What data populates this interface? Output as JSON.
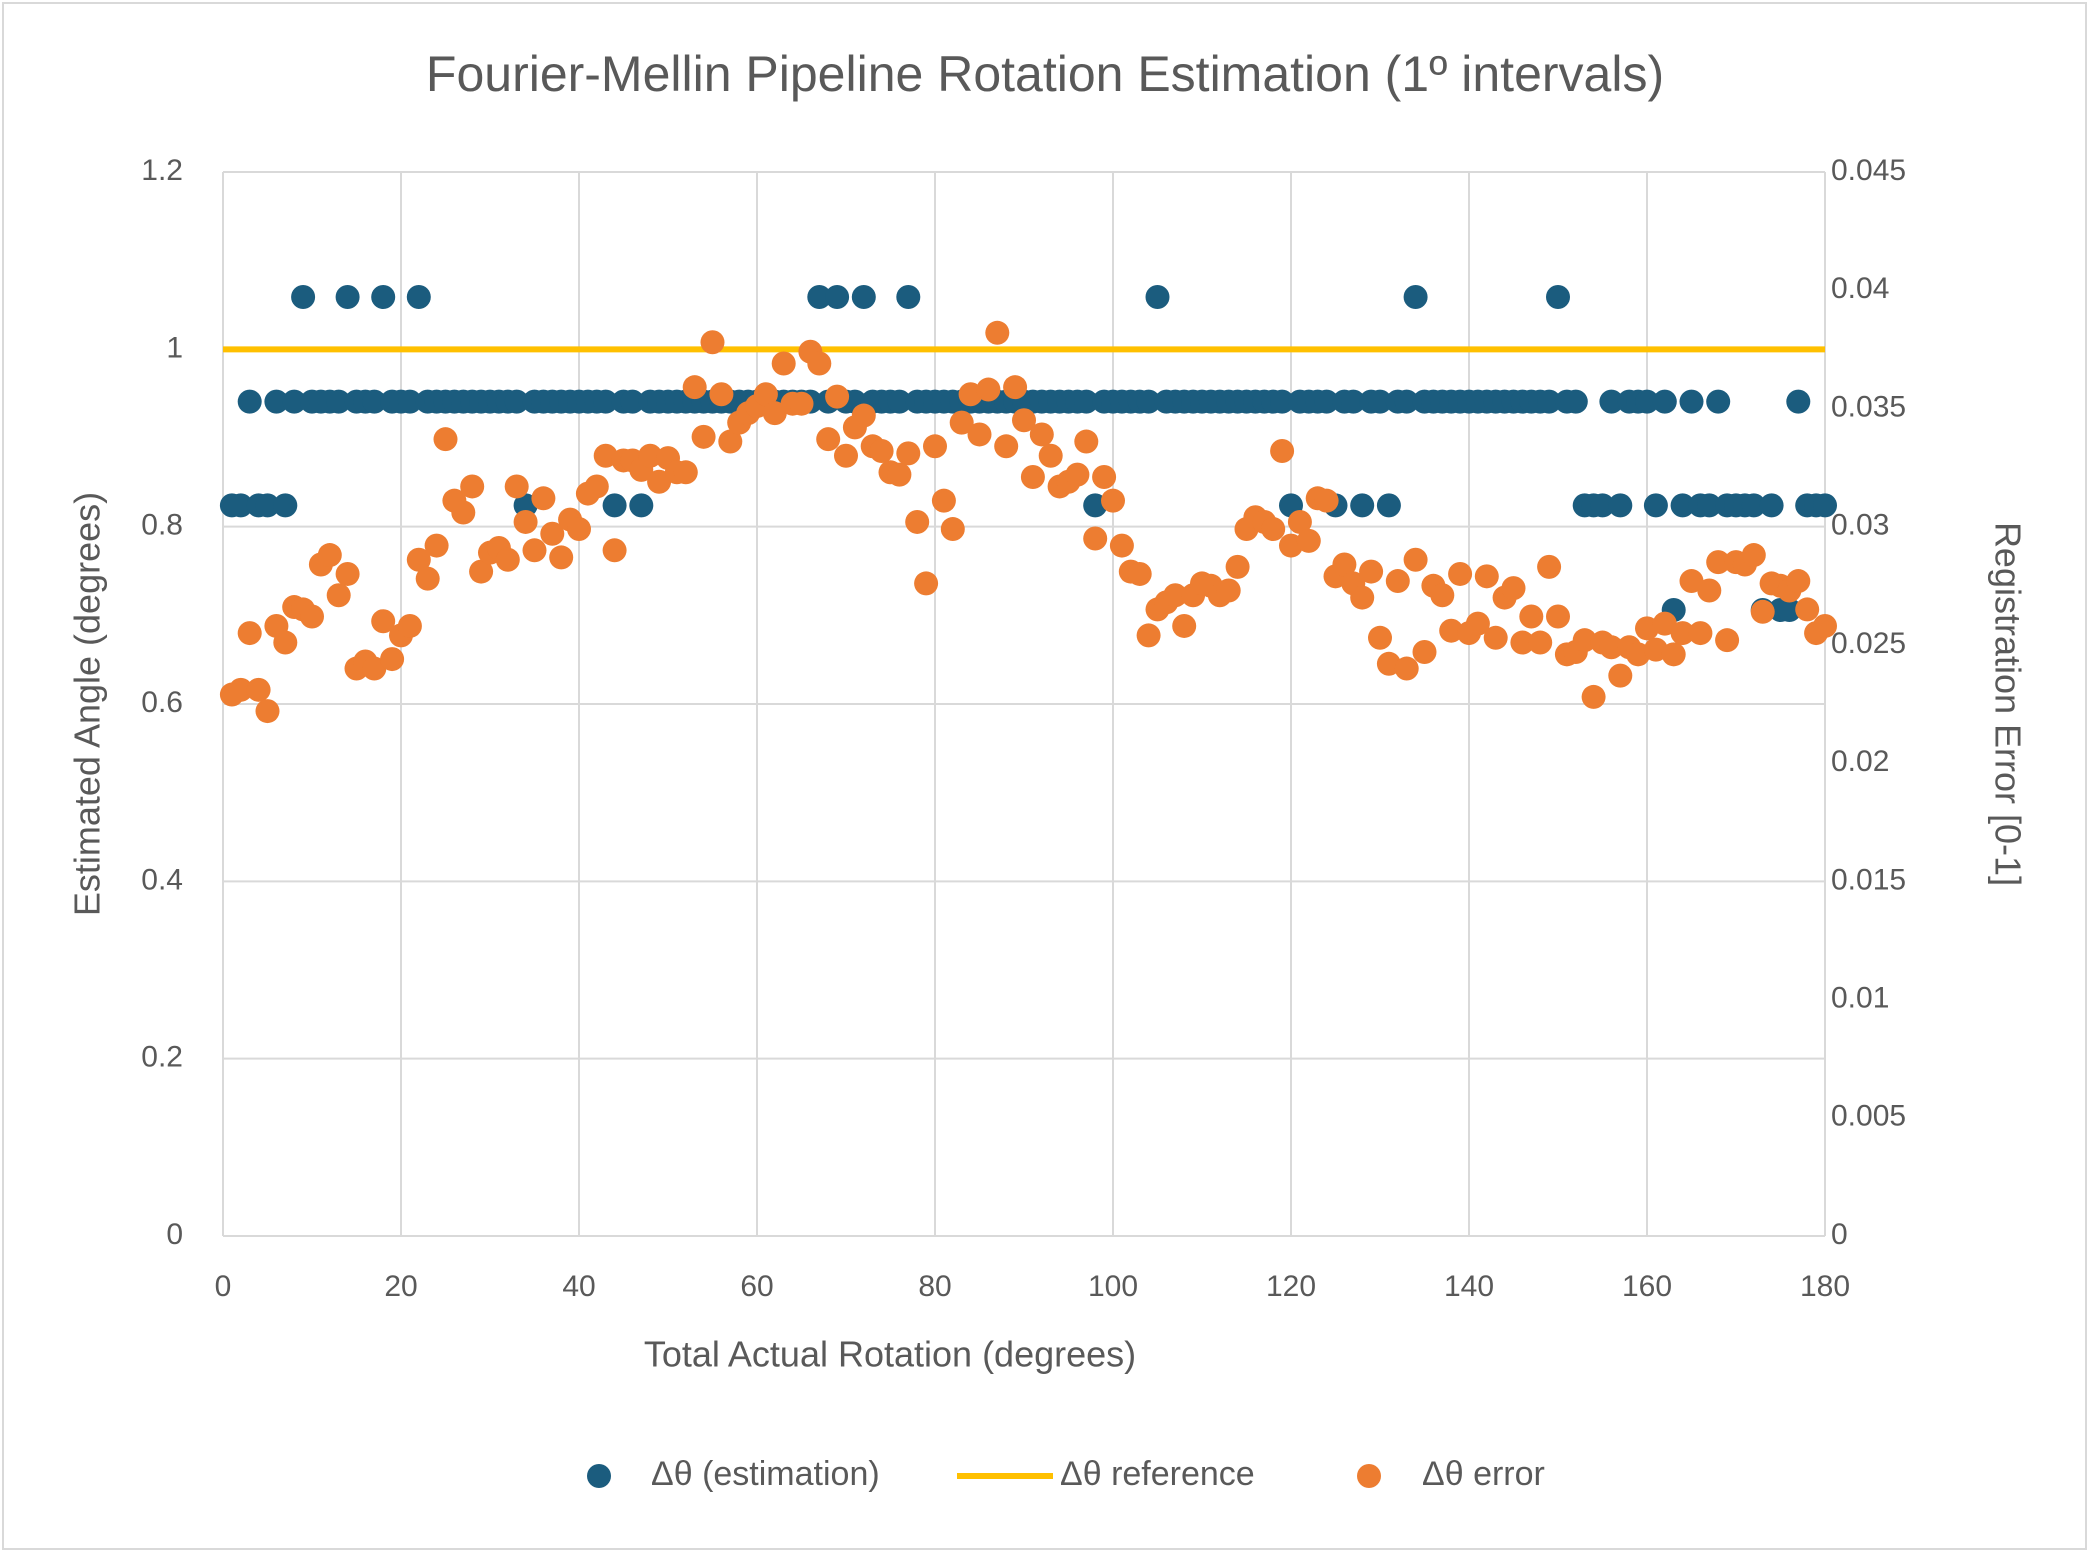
{
  "chart_data": {
    "type": "scatter",
    "title": "Fourier-Mellin Pipeline Rotation Estimation (1º intervals)",
    "x_label": "Total Actual Rotation (degrees)",
    "y_label": "Estimated Angle (degrees)",
    "y2_label": "Registration Error [0-1]",
    "x": [
      1,
      2,
      3,
      4,
      5,
      6,
      7,
      8,
      9,
      10,
      11,
      12,
      13,
      14,
      15,
      16,
      17,
      18,
      19,
      20,
      21,
      22,
      23,
      24,
      25,
      26,
      27,
      28,
      29,
      30,
      31,
      32,
      33,
      34,
      35,
      36,
      37,
      38,
      39,
      40,
      41,
      42,
      43,
      44,
      45,
      46,
      47,
      48,
      49,
      50,
      51,
      52,
      53,
      54,
      55,
      56,
      57,
      58,
      59,
      60,
      61,
      62,
      63,
      64,
      65,
      66,
      67,
      68,
      69,
      70,
      71,
      72,
      73,
      74,
      75,
      76,
      77,
      78,
      79,
      80,
      81,
      82,
      83,
      84,
      85,
      86,
      87,
      88,
      89,
      90,
      91,
      92,
      93,
      94,
      95,
      96,
      97,
      98,
      99,
      100,
      101,
      102,
      103,
      104,
      105,
      106,
      107,
      108,
      109,
      110,
      111,
      112,
      113,
      114,
      115,
      116,
      117,
      118,
      119,
      120,
      121,
      122,
      123,
      124,
      125,
      126,
      127,
      128,
      129,
      130,
      131,
      132,
      133,
      134,
      135,
      136,
      137,
      138,
      139,
      140,
      141,
      142,
      143,
      144,
      145,
      146,
      147,
      148,
      149,
      150,
      151,
      152,
      153,
      154,
      155,
      156,
      157,
      158,
      159,
      160,
      161,
      162,
      163,
      164,
      165,
      166,
      167,
      168,
      169,
      170,
      171,
      172,
      173,
      174,
      175,
      176,
      177,
      178,
      179,
      180
    ],
    "series": [
      {
        "name": "Δθ (estimation)",
        "type": "scatter",
        "color": "#1b5c7e",
        "values": [
          0.824,
          0.824,
          0.941,
          0.824,
          0.824,
          0.941,
          0.824,
          0.941,
          1.059,
          0.941,
          0.941,
          0.941,
          0.941,
          1.059,
          0.941,
          0.941,
          0.941,
          1.059,
          0.941,
          0.941,
          0.941,
          1.059,
          0.941,
          0.941,
          0.941,
          0.941,
          0.941,
          0.941,
          0.941,
          0.941,
          0.941,
          0.941,
          0.941,
          0.824,
          0.941,
          0.941,
          0.941,
          0.941,
          0.941,
          0.941,
          0.941,
          0.941,
          0.941,
          0.824,
          0.941,
          0.941,
          0.824,
          0.941,
          0.941,
          0.941,
          0.941,
          0.941,
          0.941,
          0.941,
          0.941,
          0.941,
          0.941,
          0.941,
          0.941,
          0.941,
          0.941,
          0.941,
          0.941,
          0.941,
          0.941,
          0.941,
          1.059,
          0.941,
          1.059,
          0.941,
          0.941,
          1.059,
          0.941,
          0.941,
          0.941,
          0.941,
          1.059,
          0.941,
          0.941,
          0.941,
          0.941,
          0.941,
          0.941,
          0.941,
          0.941,
          0.941,
          0.941,
          0.941,
          0.941,
          0.941,
          0.941,
          0.941,
          0.941,
          0.941,
          0.941,
          0.941,
          0.941,
          0.824,
          0.941,
          0.941,
          0.941,
          0.941,
          0.941,
          0.941,
          1.059,
          0.941,
          0.941,
          0.941,
          0.941,
          0.941,
          0.941,
          0.941,
          0.941,
          0.941,
          0.941,
          0.941,
          0.941,
          0.941,
          0.941,
          0.824,
          0.941,
          0.941,
          0.941,
          0.941,
          0.824,
          0.941,
          0.941,
          0.824,
          0.941,
          0.941,
          0.824,
          0.941,
          0.941,
          1.059,
          0.941,
          0.941,
          0.941,
          0.941,
          0.941,
          0.941,
          0.941,
          0.941,
          0.941,
          0.941,
          0.941,
          0.941,
          0.941,
          0.941,
          0.941,
          1.059,
          0.941,
          0.941,
          0.824,
          0.824,
          0.824,
          0.941,
          0.824,
          0.941,
          0.941,
          0.941,
          0.824,
          0.941,
          0.706,
          0.824,
          0.941,
          0.824,
          0.824,
          0.941,
          0.824,
          0.824,
          0.824,
          0.824,
          0.706,
          0.824,
          0.706,
          0.706,
          0.941,
          0.824,
          0.824,
          0.824
        ]
      },
      {
        "name": "Δθ reference",
        "type": "line",
        "color": "#ffc000",
        "x": [
          0,
          180
        ],
        "values": [
          1,
          1
        ]
      },
      {
        "name": "Δθ error",
        "type": "scatter",
        "color": "#ed7d31",
        "axis": "y2",
        "values": [
          0.0229,
          0.0231,
          0.0255,
          0.0231,
          0.0222,
          0.0258,
          0.0251,
          0.0266,
          0.0265,
          0.0262,
          0.0284,
          0.0288,
          0.0271,
          0.028,
          0.024,
          0.0243,
          0.024,
          0.026,
          0.0244,
          0.0254,
          0.0258,
          0.0286,
          0.0278,
          0.0292,
          0.0337,
          0.0311,
          0.0306,
          0.0317,
          0.0281,
          0.0289,
          0.0291,
          0.0286,
          0.0317,
          0.0302,
          0.029,
          0.0312,
          0.0297,
          0.0287,
          0.0303,
          0.0299,
          0.0314,
          0.0317,
          0.033,
          0.029,
          0.0328,
          0.0328,
          0.0324,
          0.033,
          0.0319,
          0.0329,
          0.0323,
          0.0323,
          0.0359,
          0.0338,
          0.0378,
          0.0356,
          0.0336,
          0.0344,
          0.0348,
          0.0351,
          0.0356,
          0.0348,
          0.0369,
          0.0352,
          0.0352,
          0.0374,
          0.0369,
          0.0337,
          0.0355,
          0.033,
          0.0342,
          0.0347,
          0.0334,
          0.0332,
          0.0323,
          0.0322,
          0.0331,
          0.0302,
          0.0276,
          0.0334,
          0.0311,
          0.0299,
          0.0344,
          0.0356,
          0.0339,
          0.0358,
          0.0382,
          0.0334,
          0.0359,
          0.0345,
          0.0321,
          0.0339,
          0.033,
          0.0317,
          0.0319,
          0.0322,
          0.0336,
          0.0295,
          0.0321,
          0.0311,
          0.0292,
          0.0281,
          0.028,
          0.0254,
          0.0265,
          0.0268,
          0.0271,
          0.0258,
          0.0271,
          0.0276,
          0.0275,
          0.0271,
          0.0273,
          0.0283,
          0.0299,
          0.0304,
          0.0302,
          0.0299,
          0.0332,
          0.0292,
          0.0302,
          0.0294,
          0.0312,
          0.0311,
          0.0279,
          0.0284,
          0.0276,
          0.027,
          0.0281,
          0.0253,
          0.0242,
          0.0277,
          0.024,
          0.0286,
          0.0247,
          0.0275,
          0.0271,
          0.0256,
          0.028,
          0.0255,
          0.0259,
          0.0279,
          0.0253,
          0.027,
          0.0274,
          0.0251,
          0.0262,
          0.0251,
          0.0283,
          0.0262,
          0.0246,
          0.0247,
          0.0252,
          0.0228,
          0.0251,
          0.0249,
          0.0237,
          0.0249,
          0.0246,
          0.0257,
          0.0248,
          0.0259,
          0.0246,
          0.0255,
          0.0277,
          0.0255,
          0.0273,
          0.0285,
          0.0252,
          0.0285,
          0.0284,
          0.0288,
          0.0264,
          0.0276,
          0.0275,
          0.0273,
          0.0277,
          0.0265,
          0.0255,
          0.0258
        ]
      }
    ],
    "xlim": [
      0,
      180
    ],
    "xticks": [
      0,
      20,
      40,
      60,
      80,
      100,
      120,
      140,
      160,
      180
    ],
    "ylim": [
      0,
      1.2
    ],
    "yticks": [
      0,
      0.2,
      0.4,
      0.6,
      0.8,
      1,
      1.2
    ],
    "y2lim": [
      0,
      0.045
    ],
    "y2ticks": [
      0,
      0.005,
      0.01,
      0.015,
      0.02,
      0.025,
      0.03,
      0.035,
      0.04,
      0.045
    ],
    "grid": true,
    "legend": "bottom"
  }
}
